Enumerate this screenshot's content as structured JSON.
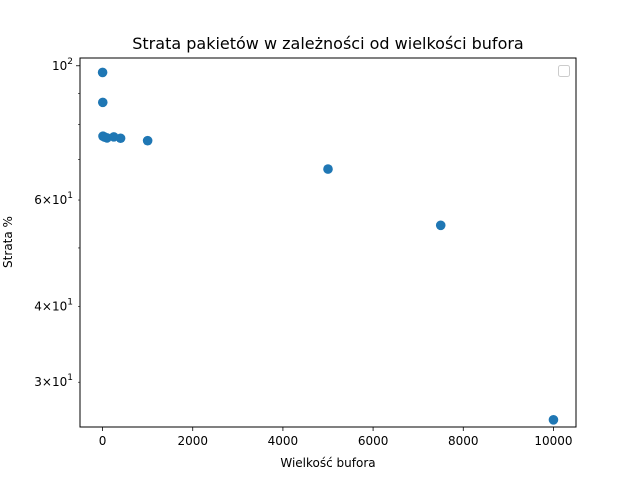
{
  "chart_data": {
    "type": "scatter",
    "title": "Strata pakietów w zależności od wielkości bufora",
    "xlabel": "Wielkość bufora",
    "ylabel": "Strata %",
    "xlim": [
      -500,
      10500
    ],
    "ylim": [
      25.3,
      103
    ],
    "yscale": "log",
    "grid": false,
    "legend": "top-right",
    "legend_entries": [],
    "marker_color": "#1f77b4",
    "x_ticks": [
      {
        "value": 0,
        "label": "0"
      },
      {
        "value": 2000,
        "label": "2000"
      },
      {
        "value": 4000,
        "label": "4000"
      },
      {
        "value": 6000,
        "label": "6000"
      },
      {
        "value": 8000,
        "label": "8000"
      },
      {
        "value": 10000,
        "label": "10000"
      }
    ],
    "y_major_ticks": [
      {
        "value": 100,
        "base": "10",
        "exp": "2"
      }
    ],
    "y_minor_ticks": [
      {
        "value": 30,
        "mant": "3",
        "base": "10",
        "exp": "1"
      },
      {
        "value": 40,
        "mant": "4",
        "base": "10",
        "exp": "1"
      },
      {
        "value": 60,
        "mant": "6",
        "base": "10",
        "exp": "1"
      }
    ],
    "y_minor_unlabeled": [
      50,
      70,
      80,
      90
    ],
    "points": [
      {
        "x": 1,
        "y": 97.5
      },
      {
        "x": 5,
        "y": 87.0
      },
      {
        "x": 10,
        "y": 76.5
      },
      {
        "x": 50,
        "y": 76.2
      },
      {
        "x": 100,
        "y": 76.0
      },
      {
        "x": 250,
        "y": 76.3
      },
      {
        "x": 400,
        "y": 75.9
      },
      {
        "x": 1000,
        "y": 75.2
      },
      {
        "x": 5000,
        "y": 67.5
      },
      {
        "x": 7500,
        "y": 54.5
      },
      {
        "x": 10000,
        "y": 26.0
      }
    ]
  }
}
